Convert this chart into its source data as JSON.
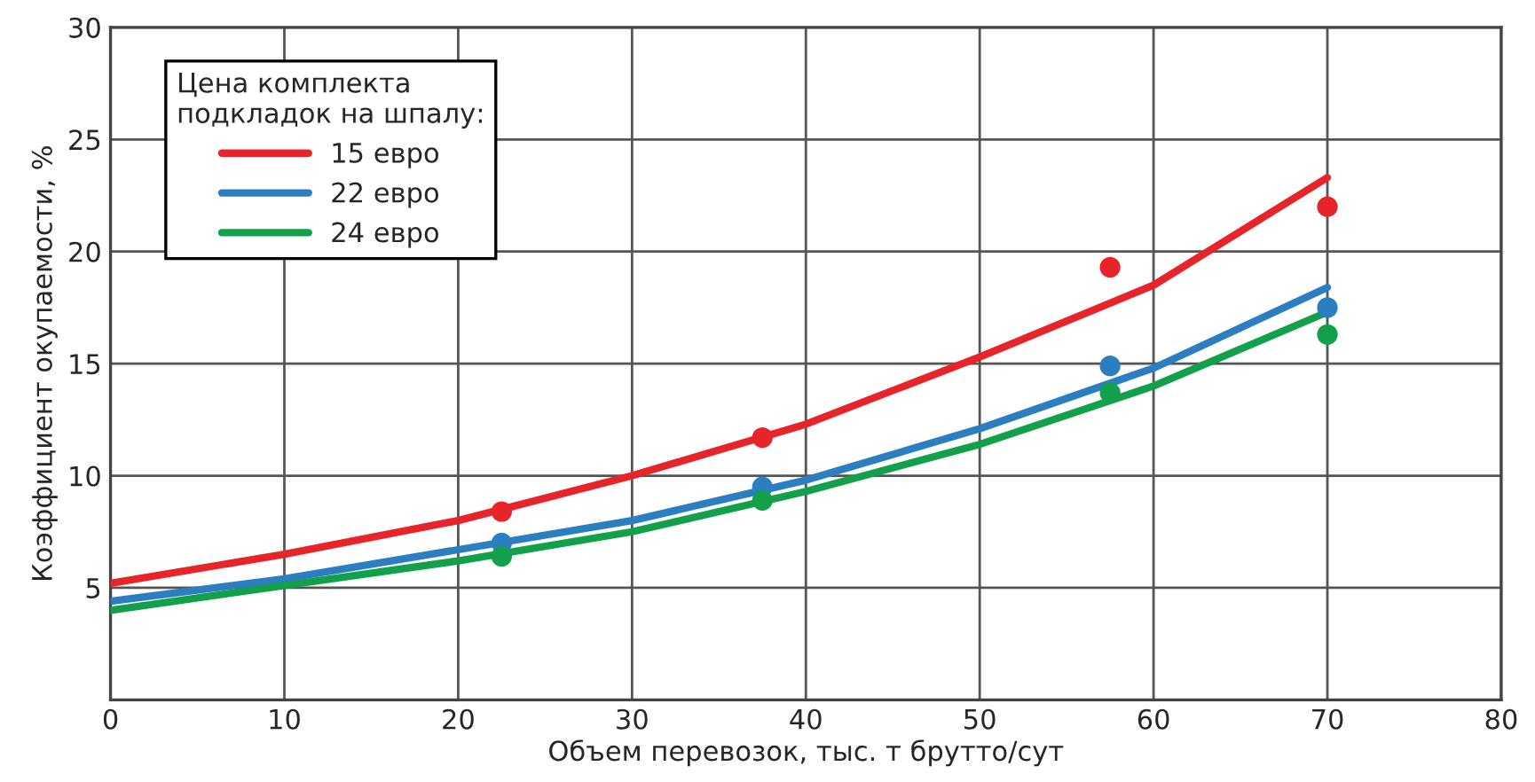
{
  "chart_data": {
    "type": "line",
    "xlabel": "Объем перевозок, тыс. т брутто/сут",
    "ylabel": "Коэффициент окупаемости, %",
    "legend_title": "Цена комплекта\nподкладок на шпалу:",
    "legend": "top left",
    "grid": true,
    "marker": "none",
    "line_style": "solid",
    "xlim": [
      0,
      80
    ],
    "xticks": [
      0,
      10,
      20,
      30,
      40,
      50,
      60,
      70,
      80
    ],
    "ylim": [
      0,
      30
    ],
    "yticks": [
      5,
      10,
      15,
      20,
      25,
      30
    ],
    "series": [
      {
        "name": "15 евро",
        "color": "#e8242b",
        "x": [
          0,
          10,
          20,
          30,
          40,
          50,
          60,
          70
        ],
        "values": [
          5.2,
          6.5,
          8.0,
          10.0,
          12.3,
          15.3,
          18.5,
          23.3
        ]
      },
      {
        "name": "22 евро",
        "color": "#2b7fc1",
        "x": [
          0,
          10,
          20,
          30,
          40,
          50,
          60,
          70
        ],
        "values": [
          4.4,
          5.4,
          6.7,
          8.0,
          9.8,
          12.1,
          14.8,
          18.4
        ]
      },
      {
        "name": "24 евро",
        "color": "#12a04a",
        "x": [
          0,
          10,
          20,
          30,
          40,
          50,
          60,
          70
        ],
        "values": [
          4.0,
          5.1,
          6.2,
          7.5,
          9.3,
          11.4,
          14.0,
          17.3
        ]
      },
      {
        "type": "scatter",
        "marker": "circle",
        "color": "#e8242b",
        "x": [
          22.5,
          37.5,
          57.5,
          70
        ],
        "values": [
          8.4,
          11.7,
          19.3,
          22.0
        ]
      },
      {
        "type": "scatter",
        "marker": "circle",
        "color": "#2b7fc1",
        "x": [
          22.5,
          37.5,
          57.5,
          70
        ],
        "values": [
          7.0,
          9.5,
          14.9,
          17.5
        ]
      },
      {
        "type": "scatter",
        "marker": "circle",
        "color": "#12a04a",
        "x": [
          22.5,
          37.5,
          57.5,
          70
        ],
        "values": [
          6.4,
          8.9,
          13.7,
          16.3
        ]
      }
    ]
  }
}
